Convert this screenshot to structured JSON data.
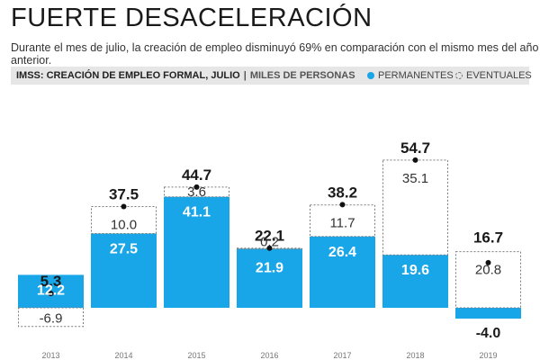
{
  "title": "FUERTE DESACELERACIÓN",
  "subtitle": "Durante el mes de julio, la creación de empleo disminuyó 69% en comparación con el mismo mes del año anterior.",
  "source_label": "IMSS: CREACIÓN DE EMPLEO FORMAL, JULIO",
  "separator": "|",
  "units_label": "MILES DE PERSONAS",
  "legend": {
    "permanentes": "PERMANENTES",
    "eventuales": "EVENTUALES"
  },
  "colors": {
    "permanentes": "#18a6e8",
    "eventuales_border": "#7a7a7a",
    "text": "#1a1a1a",
    "axis": "#9a9a9a"
  },
  "chart_data": {
    "type": "bar",
    "stacked": true,
    "categories": [
      "2013",
      "2014",
      "2015",
      "2016",
      "2017",
      "2018",
      "2019"
    ],
    "series": [
      {
        "name": "PERMANENTES",
        "values": [
          12.2,
          27.5,
          41.1,
          21.9,
          26.4,
          19.6,
          -4.0
        ]
      },
      {
        "name": "EVENTUALES",
        "values": [
          -6.9,
          10.0,
          3.6,
          0.2,
          11.7,
          35.1,
          20.8
        ]
      }
    ],
    "totals": [
      5.3,
      37.5,
      44.7,
      22.1,
      38.2,
      54.7,
      16.7
    ],
    "labels": {
      "totals": [
        "5.3",
        "37.5",
        "44.7",
        "22.1",
        "38.2",
        "54.7",
        "16.7"
      ],
      "permanentes": [
        "12.2",
        "27.5",
        "41.1",
        "21.9",
        "26.4",
        "19.6",
        "-4.0"
      ],
      "eventuales": [
        "-6.9",
        "10.0",
        "3.6",
        "0.2",
        "11.7",
        "35.1",
        "20.8"
      ]
    },
    "ylim": [
      -8,
      62
    ],
    "xlabel": "",
    "ylabel": ""
  }
}
